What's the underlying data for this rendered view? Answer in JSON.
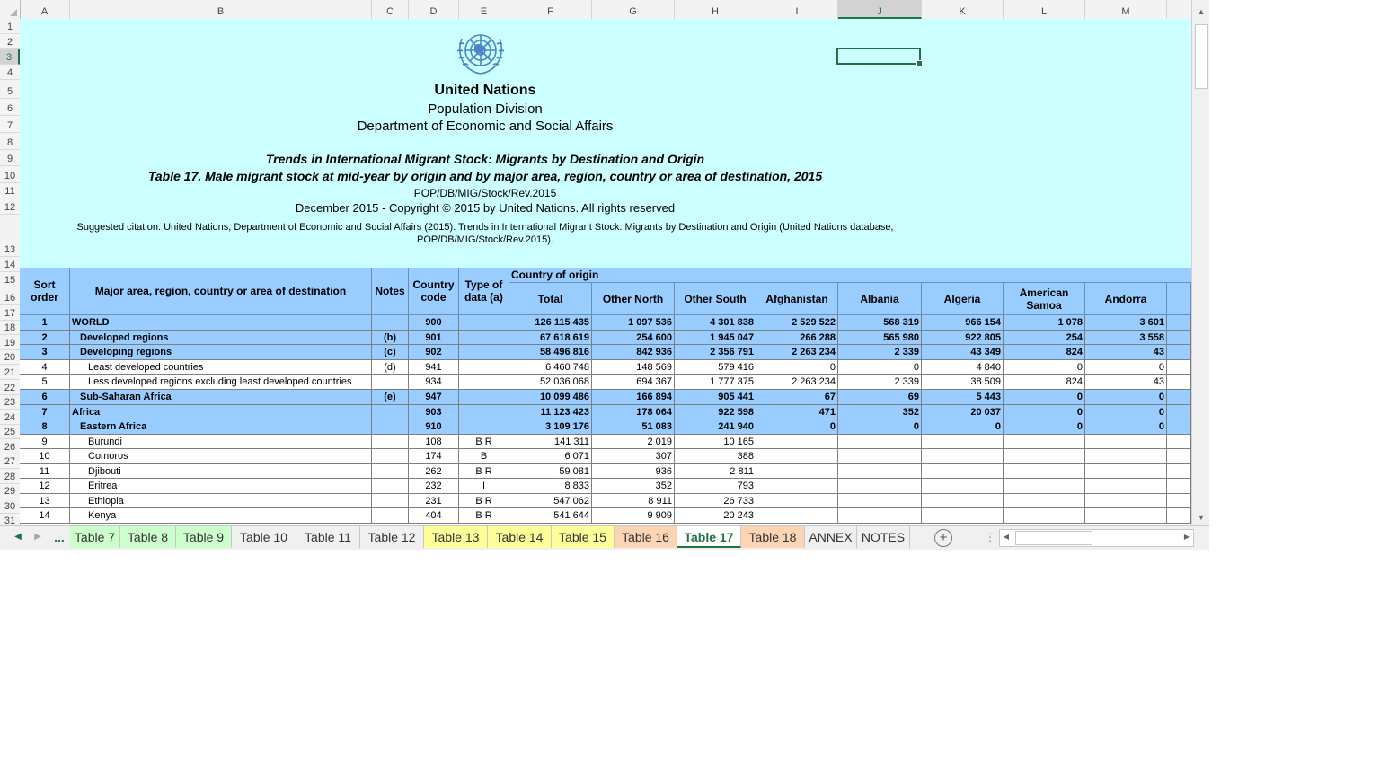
{
  "columns": [
    {
      "letter": "A",
      "w": 56
    },
    {
      "letter": "B",
      "w": 336
    },
    {
      "letter": "C",
      "w": 41
    },
    {
      "letter": "D",
      "w": 56
    },
    {
      "letter": "E",
      "w": 56
    },
    {
      "letter": "F",
      "w": 92
    },
    {
      "letter": "G",
      "w": 92
    },
    {
      "letter": "H",
      "w": 91
    },
    {
      "letter": "I",
      "w": 91
    },
    {
      "letter": "J",
      "w": 93
    },
    {
      "letter": "K",
      "w": 91
    },
    {
      "letter": "L",
      "w": 91
    },
    {
      "letter": "M",
      "w": 91
    }
  ],
  "selected_column": "J",
  "selected_row": "3",
  "row_numbers": [
    "1",
    "2",
    "3",
    "4",
    "5",
    "6",
    "7",
    "8",
    "9",
    "10",
    "11",
    "12",
    "13",
    "14",
    "15",
    "16",
    "17",
    "18",
    "19",
    "20",
    "21",
    "22",
    "23",
    "24",
    "25",
    "26",
    "27",
    "28",
    "29",
    "30",
    "31"
  ],
  "title": {
    "org": "United Nations",
    "division": "Population Division",
    "department": "Department of Economic and Social Affairs",
    "trends": "Trends in International Migrant Stock: Migrants by Destination and Origin",
    "table_title": "Table 17. Male migrant stock at mid-year by origin and by major area, region, country or area of destination, 2015",
    "code": "POP/DB/MIG/Stock/Rev.2015",
    "copyright": "December 2015 - Copyright © 2015 by United Nations. All rights reserved",
    "citation_line1": "Suggested citation: United Nations, Department of Economic and Social Affairs (2015). Trends in International Migrant Stock: Migrants by Destination and Origin (United Nations database,",
    "citation_line2": "POP/DB/MIG/Stock/Rev.2015)."
  },
  "header": {
    "sort": "Sort order",
    "area": "Major area, region, country or area of destination",
    "notes": "Notes",
    "code": "Country code",
    "type": "Type of data (a)",
    "country_of_origin": "Country of origin",
    "total": "Total",
    "other_north": "Other North",
    "other_south": "Other South",
    "afghanistan": "Afghanistan",
    "albania": "Albania",
    "algeria": "Algeria",
    "american_samoa": "American Samoa",
    "andorra": "Andorra"
  },
  "rows": [
    {
      "style": "blue",
      "indent": 0,
      "cells": [
        "1",
        "WORLD",
        "",
        "900",
        "",
        "126 115 435",
        "1 097 536",
        "4 301 838",
        "2 529 522",
        "568 319",
        "966 154",
        "1 078",
        "3 601"
      ]
    },
    {
      "style": "blue",
      "indent": 1,
      "cells": [
        "2",
        "Developed regions",
        "(b)",
        "901",
        "",
        "67 618 619",
        "254 600",
        "1 945 047",
        "266 288",
        "565 980",
        "922 805",
        "254",
        "3 558"
      ]
    },
    {
      "style": "blue",
      "indent": 1,
      "cells": [
        "3",
        "Developing regions",
        "(c)",
        "902",
        "",
        "58 496 816",
        "842 936",
        "2 356 791",
        "2 263 234",
        "2 339",
        "43 349",
        "824",
        "43"
      ]
    },
    {
      "style": "white",
      "indent": 2,
      "cells": [
        "4",
        "Least developed countries",
        "(d)",
        "941",
        "",
        "6 460 748",
        "148 569",
        "579 416",
        "0",
        "0",
        "4 840",
        "0",
        "0"
      ]
    },
    {
      "style": "white",
      "indent": 2,
      "cells": [
        "5",
        "Less developed regions excluding least developed countries",
        "",
        "934",
        "",
        "52 036 068",
        "694 367",
        "1 777 375",
        "2 263 234",
        "2 339",
        "38 509",
        "824",
        "43"
      ]
    },
    {
      "style": "blue",
      "indent": 1,
      "cells": [
        "6",
        "Sub-Saharan Africa",
        "(e)",
        "947",
        "",
        "10 099 486",
        "166 894",
        "905 441",
        "67",
        "69",
        "5 443",
        "0",
        "0"
      ]
    },
    {
      "style": "blue",
      "indent": 0,
      "cells": [
        "7",
        "Africa",
        "",
        "903",
        "",
        "11 123 423",
        "178 064",
        "922 598",
        "471",
        "352",
        "20 037",
        "0",
        "0"
      ]
    },
    {
      "style": "blue",
      "indent": 1,
      "cells": [
        "8",
        "Eastern Africa",
        "",
        "910",
        "",
        "3 109 176",
        "51 083",
        "241 940",
        "0",
        "0",
        "0",
        "0",
        "0"
      ]
    },
    {
      "style": "white",
      "indent": 2,
      "cells": [
        "9",
        "Burundi",
        "",
        "108",
        "B R",
        "141 311",
        "2 019",
        "10 165",
        "",
        "",
        "",
        "",
        ""
      ]
    },
    {
      "style": "white",
      "indent": 2,
      "cells": [
        "10",
        "Comoros",
        "",
        "174",
        "B",
        "6 071",
        "307",
        "388",
        "",
        "",
        "",
        "",
        ""
      ]
    },
    {
      "style": "white",
      "indent": 2,
      "cells": [
        "11",
        "Djibouti",
        "",
        "262",
        "B R",
        "59 081",
        "936",
        "2 811",
        "",
        "",
        "",
        "",
        ""
      ]
    },
    {
      "style": "white",
      "indent": 2,
      "cells": [
        "12",
        "Eritrea",
        "",
        "232",
        "I",
        "8 833",
        "352",
        "793",
        "",
        "",
        "",
        "",
        ""
      ]
    },
    {
      "style": "white",
      "indent": 2,
      "cells": [
        "13",
        "Ethiopia",
        "",
        "231",
        "B R",
        "547 062",
        "8 911",
        "26 733",
        "",
        "",
        "",
        "",
        ""
      ]
    },
    {
      "style": "white",
      "indent": 2,
      "cells": [
        "14",
        "Kenya",
        "",
        "404",
        "B R",
        "541 644",
        "9 909",
        "20 243",
        "",
        "",
        "",
        "",
        ""
      ]
    }
  ],
  "tabs": [
    {
      "label": "Table 7",
      "color": "#ccffcc",
      "w": 56
    },
    {
      "label": "Table 8",
      "color": "#ccffcc",
      "w": 62
    },
    {
      "label": "Table 9",
      "color": "#ccffcc",
      "w": 62
    },
    {
      "label": "Table 10",
      "color": "#f0f0f0",
      "w": 72
    },
    {
      "label": "Table 11",
      "color": "#f0f0f0",
      "w": 71
    },
    {
      "label": "Table 12",
      "color": "#f0f0f0",
      "w": 71
    },
    {
      "label": "Table 13",
      "color": "#ffff99",
      "w": 71
    },
    {
      "label": "Table 14",
      "color": "#ffff99",
      "w": 71
    },
    {
      "label": "Table 15",
      "color": "#ffff99",
      "w": 70
    },
    {
      "label": "Table 16",
      "color": "#fcd5b4",
      "w": 70
    },
    {
      "label": "Table 17",
      "color": "#ffffff",
      "w": 71,
      "active": true
    },
    {
      "label": "Table 18",
      "color": "#fcd5b4",
      "w": 71
    },
    {
      "label": "ANNEX",
      "color": "#f0f0f0",
      "w": 58
    },
    {
      "label": "NOTES",
      "color": "#f0f0f0",
      "w": 59
    }
  ],
  "tab_nav": {
    "more": "..."
  }
}
